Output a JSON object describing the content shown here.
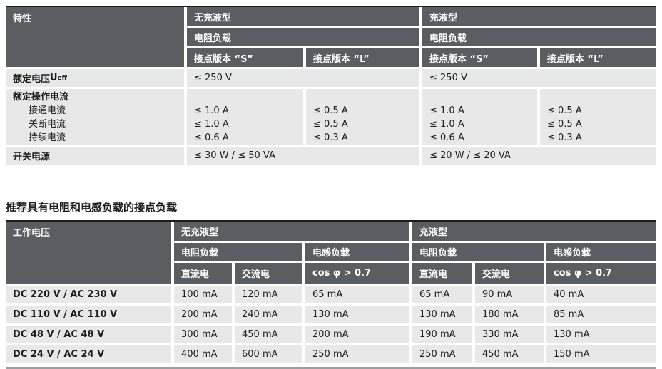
{
  "colors": {
    "header_bg": "#5a5e62",
    "row_bg": "#e8e8e9",
    "text_dark": "#1d1d1b",
    "text_light": "#ffffff"
  },
  "spec_table": {
    "corner": "特性",
    "groups": [
      "无充液型",
      "充液型"
    ],
    "load_type": [
      "电阻负载",
      "电阻负载"
    ],
    "versions": [
      "接点版本 “S”",
      "接点版本 “L”",
      "接点版本 “S”",
      "接点版本 “L”"
    ],
    "voltage_row": {
      "label": "额定电压",
      "symbol": "U",
      "symbol_sub": "eff",
      "values": [
        "≤ 250 V",
        "≤ 250 V"
      ]
    },
    "current_row": {
      "label": "额定操作电流",
      "sub_labels": [
        "接通电流",
        "关断电流",
        "持续电流"
      ],
      "col1": [
        "≤ 1.0 A",
        "≤ 1.0 A",
        "≤ 0.6 A"
      ],
      "col2": [
        "≤ 0.5 A",
        "≤ 0.5 A",
        "≤ 0.3 A"
      ],
      "col3": [
        "≤ 1.0 A",
        "≤ 1.0 A",
        "≤ 0.6 A"
      ],
      "col4": [
        "≤ 0.5 A",
        "≤ 0.5 A",
        "≤ 0.3 A"
      ]
    },
    "power_row": {
      "label": "开关电源",
      "values": [
        "≤ 30 W / ≤ 50 VA",
        "≤ 20 W / ≤ 20 VA"
      ]
    }
  },
  "section_title": "推荐具有电阻和电感负载的接点负载",
  "load_table": {
    "corner": "工作电压",
    "groups": [
      "无充液型",
      "充液型"
    ],
    "load_types": [
      "电阻负载",
      "电感负载",
      "电阻负载",
      "电感负载"
    ],
    "current_types": [
      "直流电",
      "交流电",
      "cos φ > 0.7",
      "直流电",
      "交流电",
      "cos φ > 0.7"
    ],
    "rows": [
      {
        "label": "DC 220 V / AC 230 V",
        "values": [
          "100 mA",
          "120 mA",
          "65 mA",
          "65 mA",
          "90 mA",
          "40 mA"
        ]
      },
      {
        "label": "DC 110 V / AC 110 V",
        "values": [
          "200 mA",
          "240 mA",
          "130 mA",
          "130 mA",
          "180 mA",
          "85 mA"
        ]
      },
      {
        "label": "DC 48 V / AC 48 V",
        "values": [
          "300 mA",
          "450 mA",
          "200 mA",
          "190 mA",
          "330 mA",
          "130 mA"
        ]
      },
      {
        "label": "DC 24 V / AC 24 V",
        "values": [
          "400 mA",
          "600 mA",
          "250 mA",
          "250 mA",
          "450 mA",
          "150 mA"
        ]
      }
    ]
  }
}
